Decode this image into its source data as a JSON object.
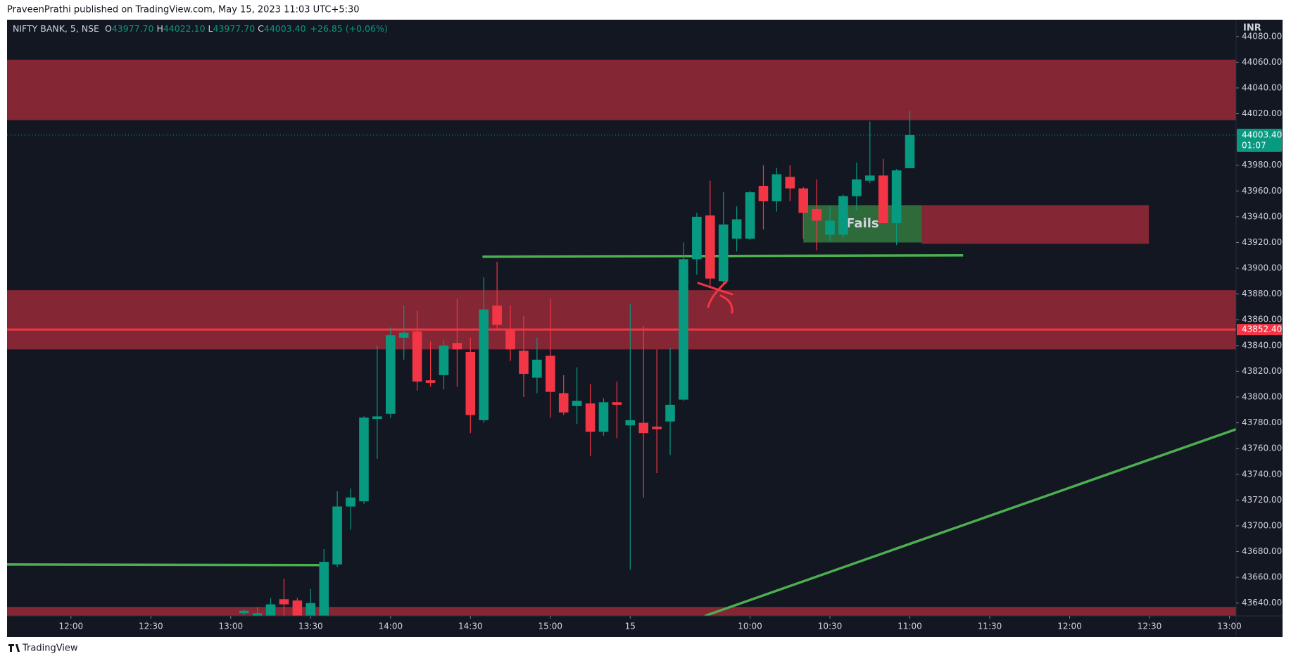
{
  "page": {
    "attribution": "PraveenPrathi published on TradingView.com, May 15, 2023 11:03 UTC+5:30",
    "footer": "TradingView"
  },
  "chart_data": {
    "type": "candlestick",
    "symbol": "NIFTY BANK, 5, NSE",
    "ohlc_labels": [
      {
        "label": "O",
        "value": "43977.70"
      },
      {
        "label": "H",
        "value": "44022.10"
      },
      {
        "label": "L",
        "value": "43977.70"
      },
      {
        "label": "C",
        "value": "44003.40"
      }
    ],
    "change": "+26.85 (+0.06%)",
    "currency": "INR",
    "up_color": "#089981",
    "down_color": "#f23645",
    "x": [
      13,
      14,
      15,
      16,
      17,
      18,
      19,
      20,
      21,
      22,
      23,
      24,
      25,
      26,
      27,
      28,
      29,
      30,
      31,
      32,
      33,
      34,
      35,
      36,
      37,
      38,
      39,
      40,
      41,
      42,
      43,
      44,
      45,
      46,
      47,
      48,
      49,
      50,
      51,
      52,
      53,
      54,
      55,
      56,
      57,
      58,
      59,
      60,
      61,
      62,
      63
    ],
    "open": [
      43632,
      43628,
      43625,
      43643,
      43642,
      43630,
      43625,
      43670,
      43715,
      43719,
      43783,
      43787,
      43846,
      43851,
      43813,
      43817,
      43842,
      43835,
      43782,
      43871,
      43853,
      43836,
      43815,
      43832,
      43803,
      43793,
      43795,
      43773,
      43796,
      43778,
      43780,
      43777,
      43781,
      43798,
      43907,
      43941,
      43890,
      43923,
      43923,
      43964,
      43952,
      43971,
      43962,
      43946,
      43926,
      43926,
      43956,
      43968,
      43972,
      43935,
      43977.7
    ],
    "high": [
      43635,
      43637,
      43644,
      43659,
      43644,
      43651,
      43682,
      43727,
      43729,
      43785,
      43840,
      43854,
      43871,
      43867,
      43843,
      43844,
      43876,
      43846,
      43893,
      43905,
      43871,
      43863,
      43846,
      43876,
      43817,
      43823,
      43810,
      43799,
      43812,
      43872,
      43855,
      43837,
      43838,
      43920,
      43943,
      43968,
      43959,
      43948,
      43960,
      43980,
      43978,
      43980,
      43963,
      43969,
      43948,
      43957,
      43982,
      44014,
      43985,
      43977,
      44022.1
    ],
    "low": [
      43625,
      43620,
      43620,
      43628,
      43615,
      43620,
      43615,
      43668,
      43697,
      43717,
      43752,
      43784,
      43829,
      43805,
      43808,
      43806,
      43808,
      43772,
      43780,
      43853,
      43828,
      43800,
      43803,
      43784,
      43786,
      43779,
      43754,
      43770,
      43768,
      43666,
      43722,
      43741,
      43755,
      43797,
      43895,
      43885,
      43888,
      43913,
      43922,
      43930,
      43944,
      43952,
      43923,
      43914,
      43921,
      43924,
      43945,
      43966,
      43935,
      43918,
      43977.7
    ],
    "close": [
      43634,
      43632,
      43639,
      43639,
      43625,
      43640,
      43672,
      43715,
      43722,
      43784,
      43785,
      43848,
      43850,
      43812,
      43811,
      43840,
      43837,
      43786,
      43868,
      43856,
      43837,
      43818,
      43829,
      43804,
      43788,
      43797,
      43773,
      43796,
      43794,
      43782,
      43772,
      43775,
      43794,
      43907,
      43940,
      43892,
      43934,
      43938,
      43959,
      43952,
      43973,
      43962,
      43943,
      43937,
      43937,
      43956,
      43969,
      43972,
      43935,
      43976,
      44003.4
    ],
    "xlim": [
      -4.8,
      87.5
    ],
    "ylim": [
      43630,
      44093
    ],
    "xticks": [
      {
        "value": 0,
        "label": "12:00"
      },
      {
        "value": 6,
        "label": "12:30"
      },
      {
        "value": 12,
        "label": "13:00"
      },
      {
        "value": 18,
        "label": "13:30"
      },
      {
        "value": 24,
        "label": "14:00"
      },
      {
        "value": 30,
        "label": "14:30"
      },
      {
        "value": 36,
        "label": "15:00"
      },
      {
        "value": 42,
        "label": "15"
      },
      {
        "value": 51,
        "label": "10:00"
      },
      {
        "value": 57,
        "label": "10:30"
      },
      {
        "value": 63,
        "label": "11:00"
      },
      {
        "value": 69,
        "label": "11:30"
      },
      {
        "value": 75,
        "label": "12:00"
      },
      {
        "value": 81,
        "label": "12:30"
      },
      {
        "value": 87,
        "label": "13:00"
      }
    ],
    "yticks": [
      {
        "value": 44080,
        "label": "44080.00"
      },
      {
        "value": 44060,
        "label": "44060.00"
      },
      {
        "value": 44040,
        "label": "44040.00"
      },
      {
        "value": 44020,
        "label": "44020.00"
      },
      {
        "value": 43980,
        "label": "43980.00"
      },
      {
        "value": 43960,
        "label": "43960.00"
      },
      {
        "value": 43940,
        "label": "43940.00"
      },
      {
        "value": 43920,
        "label": "43920.00"
      },
      {
        "value": 43900,
        "label": "43900.00"
      },
      {
        "value": 43880,
        "label": "43880.00"
      },
      {
        "value": 43860,
        "label": "43860.00"
      },
      {
        "value": 43840,
        "label": "43840.00"
      },
      {
        "value": 43820,
        "label": "43820.00"
      },
      {
        "value": 43800,
        "label": "43800.00"
      },
      {
        "value": 43780,
        "label": "43780.00"
      },
      {
        "value": 43760,
        "label": "43760.00"
      },
      {
        "value": 43740,
        "label": "43740.00"
      },
      {
        "value": 43720,
        "label": "43720.00"
      },
      {
        "value": 43700,
        "label": "43700.00"
      },
      {
        "value": 43680,
        "label": "43680.00"
      },
      {
        "value": 43660,
        "label": "43660.00"
      },
      {
        "value": 43640,
        "label": "43640.00"
      }
    ],
    "last_price": {
      "value": 44003.4,
      "label": "44003.40",
      "countdown": "01:07",
      "color": "#089981"
    },
    "zones": [
      {
        "y": [
          44015,
          44062
        ],
        "color": "#852634"
      },
      {
        "y": [
          43837,
          43883
        ],
        "color": "#852634"
      },
      {
        "y": [
          43630,
          43637
        ],
        "color": "#852634"
      },
      {
        "x": [
          63.9,
          80.95
        ],
        "y": [
          43919,
          43949
        ],
        "color": "#852634"
      },
      {
        "x": [
          55,
          63.9
        ],
        "y": [
          43920,
          43949
        ],
        "color": "#2f6b3a",
        "label": "Fails"
      }
    ],
    "level": {
      "value": 43852.4,
      "label": "43852.40",
      "color": "#f23645"
    },
    "lines": [
      {
        "x": [
          -4.8,
          19
        ],
        "y": [
          43670,
          43669.5
        ],
        "color": "#4caf50"
      },
      {
        "x": [
          30.9,
          67
        ],
        "y": [
          43909,
          43910
        ],
        "color": "#4caf50"
      },
      {
        "x": [
          47.6,
          87.5
        ],
        "y": [
          43630,
          43775
        ],
        "color": "#4caf50"
      }
    ]
  }
}
